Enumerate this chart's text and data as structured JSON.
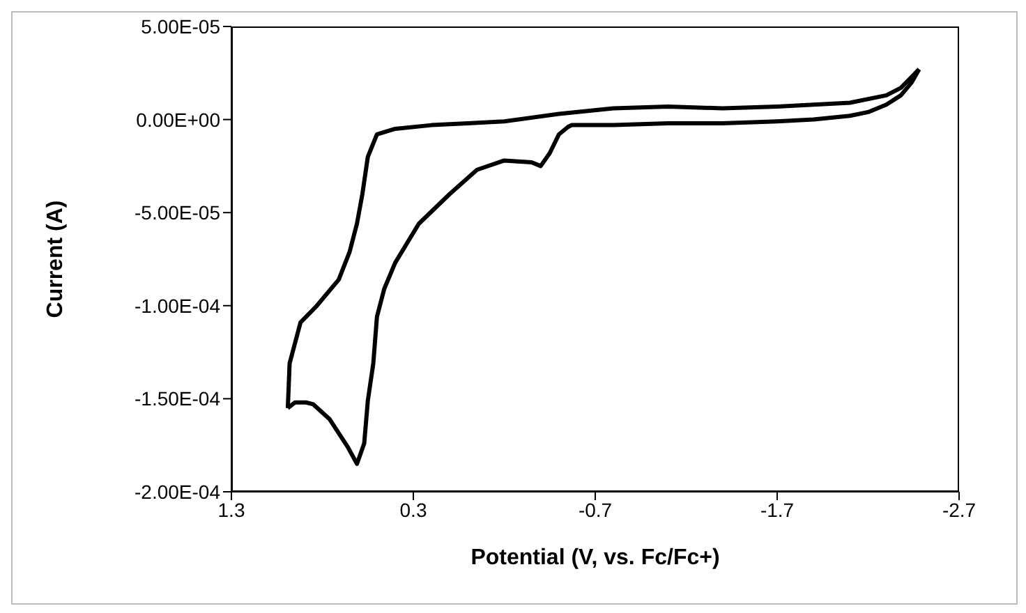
{
  "chart_data": {
    "type": "line",
    "xlabel": "Potential (V, vs. Fc/Fc+)",
    "ylabel": "Current (A)",
    "xlim": [
      1.3,
      -2.7
    ],
    "xticks": [
      1.3,
      0.3,
      -0.7,
      -1.7,
      -2.7
    ],
    "ylim": [
      -0.0002,
      5e-05
    ],
    "yticks": [
      {
        "value": 5e-05,
        "label": "5.00E-05"
      },
      {
        "value": 0,
        "label": "0.00E+00"
      },
      {
        "value": -5e-05,
        "label": "-5.00E-05"
      },
      {
        "value": -0.0001,
        "label": "-1.00E-04"
      },
      {
        "value": -0.00015,
        "label": "-1.50E-04"
      },
      {
        "value": -0.0002,
        "label": "-2.00E-04"
      }
    ],
    "grid": false,
    "marker": "none",
    "line_style": "solid",
    "series": [
      {
        "color": "#000000",
        "x": [
          0.99,
          0.95,
          0.89,
          0.85,
          0.76,
          0.66,
          0.61,
          0.57,
          0.55,
          0.52,
          0.5,
          0.46,
          0.4,
          0.27,
          0.1,
          -0.05,
          -0.2,
          -0.35,
          -0.4,
          -0.45,
          -0.5,
          -0.55,
          -0.57,
          -0.8,
          -1.1,
          -1.4,
          -1.7,
          -1.9,
          -2.1,
          -2.2,
          -2.3,
          -2.38,
          -2.44,
          -2.48
        ],
        "values": [
          -0.000155,
          -0.000152,
          -0.000152,
          -0.000153,
          -0.000161,
          -0.000176,
          -0.000185,
          -0.000174,
          -0.000151,
          -0.000131,
          -0.000106,
          -9.1e-05,
          -7.7e-05,
          -5.6e-05,
          -4e-05,
          -2.7e-05,
          -2.2e-05,
          -2.3e-05,
          -2.5e-05,
          -1.8e-05,
          -8e-06,
          -4e-06,
          -3e-06,
          -3e-06,
          -2e-06,
          -2e-06,
          -1e-06,
          0,
          2e-06,
          4e-06,
          8e-06,
          1.3e-05,
          2e-05,
          2.7e-05
        ]
      },
      {
        "color": "#000000",
        "x": [
          -2.48,
          -2.45,
          -2.38,
          -2.3,
          -2.1,
          -1.9,
          -1.7,
          -1.4,
          -1.1,
          -0.8,
          -0.5,
          -0.2,
          0.0,
          0.2,
          0.4,
          0.5,
          0.55,
          0.58,
          0.61,
          0.65,
          0.71,
          0.83,
          0.92,
          0.98,
          0.99
        ],
        "values": [
          2.7e-05,
          2.4e-05,
          1.7e-05,
          1.3e-05,
          9e-06,
          8e-06,
          7e-06,
          6e-06,
          7e-06,
          6e-06,
          3e-06,
          -1e-06,
          -2e-06,
          -3e-06,
          -5e-06,
          -8e-06,
          -2e-05,
          -4e-05,
          -5.6e-05,
          -7.1e-05,
          -8.6e-05,
          -0.0001,
          -0.000109,
          -0.000131,
          -0.000155
        ]
      }
    ]
  }
}
